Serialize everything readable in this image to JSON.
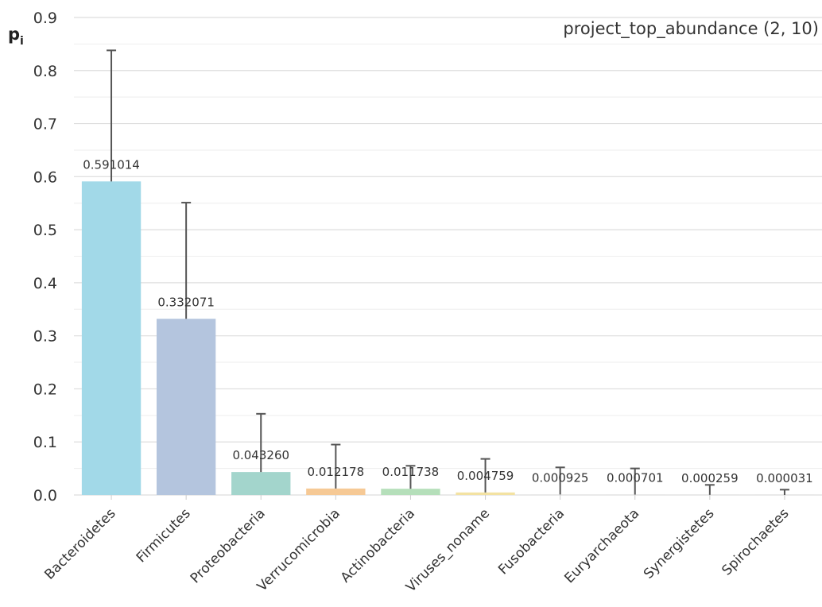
{
  "chart_data": {
    "type": "bar",
    "title": "project_top_abundance (2, 10)",
    "ylabel": "p",
    "ylabel_subscript": "i",
    "xlabel": "",
    "ylim": [
      0,
      0.9
    ],
    "yticks": [
      "0.0",
      "0.1",
      "0.2",
      "0.3",
      "0.4",
      "0.5",
      "0.6",
      "0.7",
      "0.8",
      "0.9"
    ],
    "ytick_values": [
      0,
      0.1,
      0.2,
      0.3,
      0.4,
      0.5,
      0.6,
      0.7,
      0.8,
      0.9
    ],
    "grid": true,
    "categories": [
      "Bacteroidetes",
      "Firmicutes",
      "Proteobacteria",
      "Verrucomicrobia",
      "Actinobacteria",
      "Viruses_noname",
      "Fusobacteria",
      "Euryarchaeota",
      "Synergistetes",
      "Spirochaetes"
    ],
    "values": [
      0.591014,
      0.332071,
      0.04326,
      0.012178,
      0.011738,
      0.004759,
      0.000925,
      0.000701,
      0.000259,
      3.1e-05
    ],
    "value_labels": [
      "0.591014",
      "0.332071",
      "0.043260",
      "0.012178",
      "0.011738",
      "0.004759",
      "0.000925",
      "0.000701",
      "0.000259",
      "0.000031"
    ],
    "error_upper": [
      0.838,
      0.551,
      0.153,
      0.095,
      0.055,
      0.068,
      0.052,
      0.05,
      0.019,
      0.01
    ],
    "colors": [
      "#a2d9e8",
      "#b4c5de",
      "#a3d5cc",
      "#f6c995",
      "#b5dfba",
      "#f3e2a2",
      "#e0e0e0",
      "#e0e0e0",
      "#e0e0e0",
      "#e0e0e0"
    ],
    "error_color": "#555555",
    "grid_color": "#dddddd"
  }
}
